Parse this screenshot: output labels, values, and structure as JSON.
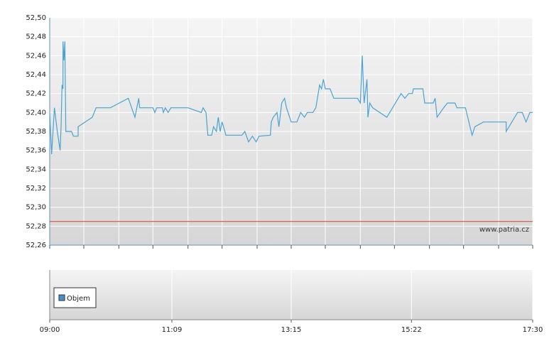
{
  "chart_data": {
    "type": "line",
    "source_label": "www.patria.cz",
    "legend": "Objem",
    "legend_color": "#4a90c8",
    "ylim": [
      52.26,
      52.5
    ],
    "yticks": [
      {
        "value": 52.26,
        "label": "52,26"
      },
      {
        "value": 52.28,
        "label": "52,28"
      },
      {
        "value": 52.3,
        "label": "52,30"
      },
      {
        "value": 52.32,
        "label": "52,32"
      },
      {
        "value": 52.34,
        "label": "52,34"
      },
      {
        "value": 52.36,
        "label": "52,36"
      },
      {
        "value": 52.38,
        "label": "52,38"
      },
      {
        "value": 52.4,
        "label": "52,40"
      },
      {
        "value": 52.42,
        "label": "52,42"
      },
      {
        "value": 52.44,
        "label": "52,44"
      },
      {
        "value": 52.46,
        "label": "52,46"
      },
      {
        "value": 52.48,
        "label": "52,48"
      },
      {
        "value": 52.5,
        "label": "52,50"
      }
    ],
    "xlim": [
      540,
      1050
    ],
    "xticks": [
      {
        "value": 540,
        "label": "09:00"
      },
      {
        "value": 669,
        "label": "11:09"
      },
      {
        "value": 795,
        "label": "13:15"
      },
      {
        "value": 922,
        "label": "15:22"
      },
      {
        "value": 1050,
        "label": "17:30"
      }
    ],
    "minor_xticks": [
      540,
      576,
      613,
      649,
      686,
      722,
      759,
      795,
      831,
      868,
      904,
      941,
      977,
      1014,
      1050
    ],
    "grid": true,
    "reference_line": {
      "value": 52.285,
      "color": "#d9534f"
    },
    "series": [
      {
        "color": "#4aa3d0",
        "x": [
          540,
          542,
          545,
          548,
          551,
          552,
          553,
          554,
          554,
          555,
          556,
          557,
          563,
          565,
          570,
          570,
          585,
          589,
          604,
          623,
          630,
          634,
          635,
          649,
          651,
          653,
          659,
          660,
          662,
          665,
          668,
          686,
          700,
          702,
          705,
          707,
          711,
          713,
          716,
          718,
          720,
          722,
          725,
          726,
          743,
          746,
          750,
          754,
          758,
          761,
          773,
          774,
          776,
          780,
          782,
          785,
          788,
          790,
          795,
          801,
          805,
          809,
          812,
          818,
          821,
          825,
          827,
          829,
          831,
          836,
          840,
          863,
          865,
          868,
          870,
          872,
          875,
          876,
          878,
          881,
          896,
          911,
          915,
          919,
          923,
          924,
          934,
          936,
          945,
          947,
          949,
          956,
          960,
          968,
          970,
          979,
          986,
          989,
          998,
          1022,
          1022,
          1028,
          1031,
          1034,
          1039,
          1043,
          1047,
          1050
        ],
        "values": [
          52.399,
          52.356,
          52.405,
          52.38,
          52.36,
          52.385,
          52.429,
          52.425,
          52.475,
          52.455,
          52.475,
          52.38,
          52.38,
          52.375,
          52.375,
          52.385,
          52.395,
          52.405,
          52.405,
          52.415,
          52.395,
          52.415,
          52.405,
          52.405,
          52.4,
          52.405,
          52.405,
          52.4,
          52.405,
          52.4,
          52.405,
          52.405,
          52.4,
          52.405,
          52.4,
          52.376,
          52.376,
          52.385,
          52.38,
          52.395,
          52.38,
          52.39,
          52.38,
          52.376,
          52.376,
          52.38,
          52.369,
          52.375,
          52.369,
          52.375,
          52.376,
          52.39,
          52.395,
          52.4,
          52.385,
          52.41,
          52.415,
          52.405,
          52.39,
          52.39,
          52.4,
          52.395,
          52.4,
          52.4,
          52.405,
          52.429,
          52.425,
          52.435,
          52.425,
          52.425,
          52.415,
          52.415,
          52.415,
          52.41,
          52.46,
          52.41,
          52.435,
          52.395,
          52.41,
          52.405,
          52.395,
          52.42,
          52.415,
          52.42,
          52.42,
          52.425,
          52.425,
          52.41,
          52.41,
          52.415,
          52.395,
          52.405,
          52.41,
          52.41,
          52.405,
          52.405,
          52.376,
          52.385,
          52.39,
          52.39,
          52.38,
          52.39,
          52.395,
          52.4,
          52.4,
          52.39,
          52.4,
          52.4
        ]
      }
    ]
  }
}
